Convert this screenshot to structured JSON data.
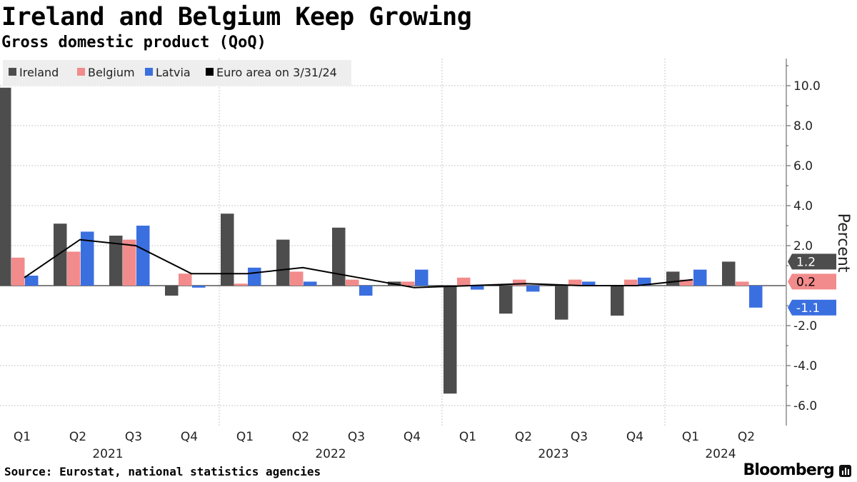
{
  "header": {
    "title": "Ireland and Belgium Keep Growing",
    "subtitle": "Gross domestic product (QoQ)"
  },
  "footer": {
    "source": "Source: Eurostat, national statistics agencies",
    "brand": "Bloomberg"
  },
  "colors": {
    "ireland": "#4d4d4d",
    "belgium": "#f28b8b",
    "latvia": "#3a6fe0",
    "euro_area": "#000000",
    "grid": "#c8c8c8",
    "legend_bg": "#eeeeee"
  },
  "chart_data": {
    "type": "bar",
    "categories": [
      "Q1",
      "Q2",
      "Q3",
      "Q4",
      "Q1",
      "Q2",
      "Q3",
      "Q4",
      "Q1",
      "Q2",
      "Q3",
      "Q4",
      "Q1",
      "Q2"
    ],
    "years": [
      {
        "label": "2021",
        "start": 0,
        "end": 3
      },
      {
        "label": "2022",
        "start": 4,
        "end": 7
      },
      {
        "label": "2023",
        "start": 8,
        "end": 11
      },
      {
        "label": "2024",
        "start": 12,
        "end": 13
      }
    ],
    "series": [
      {
        "name": "Ireland",
        "key": "ireland",
        "values": [
          9.9,
          3.1,
          2.5,
          -0.5,
          3.6,
          2.3,
          2.9,
          0.2,
          -5.4,
          -1.4,
          -1.7,
          -1.5,
          0.7,
          1.2
        ]
      },
      {
        "name": "Belgium",
        "key": "belgium",
        "values": [
          1.4,
          1.7,
          2.3,
          0.6,
          0.1,
          0.7,
          0.3,
          0.2,
          0.4,
          0.3,
          0.3,
          0.3,
          0.3,
          0.2
        ]
      },
      {
        "name": "Latvia",
        "key": "latvia",
        "values": [
          0.5,
          2.7,
          3.0,
          -0.1,
          0.9,
          0.2,
          -0.5,
          0.8,
          -0.2,
          -0.3,
          0.2,
          0.4,
          0.8,
          -1.1
        ]
      }
    ],
    "line_series": {
      "name": "Euro area on 3/31/24",
      "key": "euro_area",
      "values": [
        0.4,
        2.3,
        2.0,
        0.6,
        0.6,
        0.9,
        0.4,
        -0.1,
        0.0,
        0.1,
        0.0,
        0.0,
        0.3
      ]
    },
    "end_labels": [
      {
        "text": "1.2",
        "key": "ireland",
        "value": 1.2,
        "text_color": "#ffffff"
      },
      {
        "text": "0.2",
        "key": "belgium",
        "value": 0.2,
        "text_color": "#000000"
      },
      {
        "text": "-1.1",
        "key": "latvia",
        "value": -1.1,
        "text_color": "#ffffff"
      }
    ],
    "yticks": [
      "10.0",
      "8.0",
      "6.0",
      "4.0",
      "2.0",
      "-2.0",
      "-4.0",
      "-6.0"
    ],
    "ytick_values": [
      10,
      8,
      6,
      4,
      2,
      -2,
      -4,
      -6
    ],
    "ylim": [
      -6.8,
      11.3
    ],
    "ylabel": "Percent",
    "legend_position": "top-left",
    "grid": true
  }
}
